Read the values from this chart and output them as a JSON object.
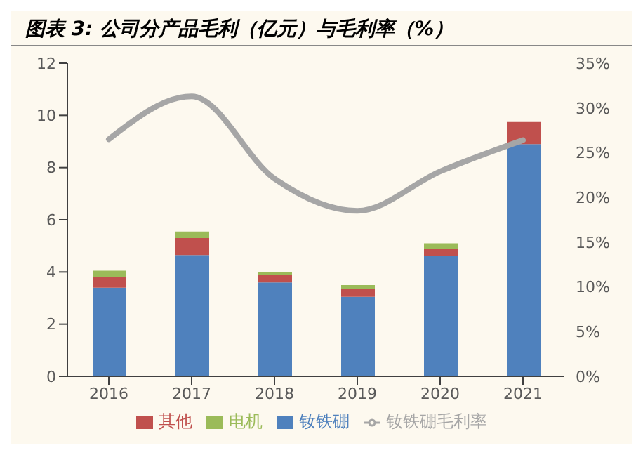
{
  "chart_data": {
    "type": "bar",
    "title": "图表 3: 公司分产品毛利（亿元）与毛利率（%）",
    "categories": [
      "2016",
      "2017",
      "2018",
      "2019",
      "2020",
      "2021"
    ],
    "stacked": true,
    "series": [
      {
        "name": "钕铁硼",
        "color": "#4f81bd",
        "values": [
          3.4,
          4.65,
          3.6,
          3.05,
          4.6,
          8.9
        ]
      },
      {
        "name": "其他",
        "color": "#c0504d",
        "values": [
          0.4,
          0.65,
          0.3,
          0.3,
          0.3,
          0.85
        ]
      },
      {
        "name": "电机",
        "color": "#9bbb59",
        "values": [
          0.25,
          0.25,
          0.1,
          0.15,
          0.2,
          0
        ]
      },
      {
        "name": "钕铁硼毛利率",
        "type": "line",
        "axis": "y2",
        "color": "#a6a6a6",
        "values": [
          26.5,
          31.3,
          22.1,
          18.5,
          22.9,
          26.4
        ]
      }
    ],
    "ylim": [
      0,
      12
    ],
    "yticks": [
      0,
      2,
      4,
      6,
      8,
      10,
      12
    ],
    "y2lim": [
      0,
      35
    ],
    "y2ticks": [
      {
        "value": 0,
        "label": "0%"
      },
      {
        "value": 5,
        "label": "5%"
      },
      {
        "value": 10,
        "label": "10%"
      },
      {
        "value": 15,
        "label": "15%"
      },
      {
        "value": 20,
        "label": "20%"
      },
      {
        "value": 25,
        "label": "25%"
      },
      {
        "value": 30,
        "label": "30%"
      },
      {
        "value": 35,
        "label": "35%"
      }
    ],
    "grid": false,
    "legend": "bottom",
    "marker": "none"
  }
}
